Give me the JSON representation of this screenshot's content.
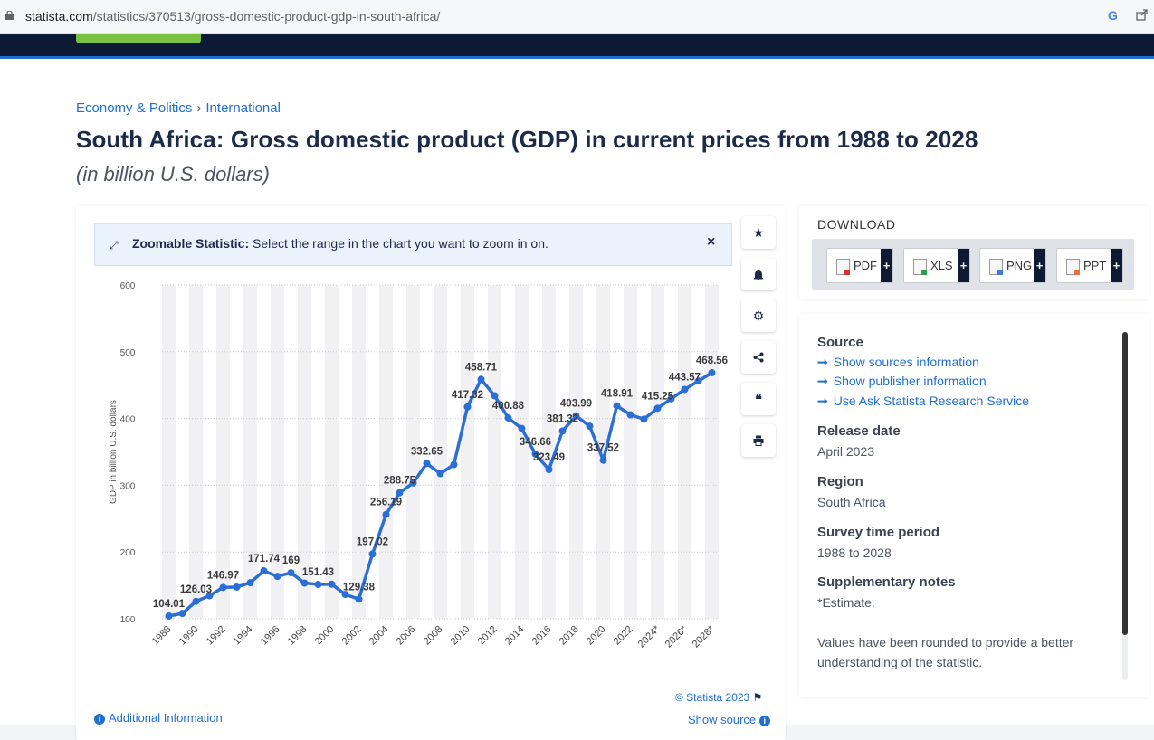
{
  "browser": {
    "url_host": "statista.com",
    "url_path": "/statistics/370513/gross-domestic-product-gdp-in-south-africa/",
    "google_icon": "G"
  },
  "breadcrumb": {
    "items": [
      "Economy & Politics",
      "International"
    ],
    "separator": "›"
  },
  "page": {
    "title": "South Africa: Gross domestic product (GDP) in current prices from 1988 to 2028",
    "subtitle": "(in billion U.S. dollars)"
  },
  "zoom_banner": {
    "label": "Zoomable Statistic:",
    "text": "Select the range in the chart you want to zoom in on.",
    "close": "×"
  },
  "tools": [
    "star-icon",
    "bell-icon",
    "gear-icon",
    "share-icon",
    "quote-icon",
    "print-icon"
  ],
  "chart_data": {
    "type": "line",
    "title": "",
    "xlabel": "",
    "ylabel": "GDP in billion U.S. dollars",
    "ylim": [
      100,
      600
    ],
    "yticks": [
      100,
      200,
      300,
      400,
      500,
      600
    ],
    "x_tick_labels": [
      "1988",
      "1990",
      "1992",
      "1994",
      "1996",
      "1998",
      "2000",
      "2002",
      "2004",
      "2006",
      "2008",
      "2010",
      "2012",
      "2014",
      "2016",
      "2018",
      "2020",
      "2022",
      "2024*",
      "2026*",
      "2028*"
    ],
    "grid": true,
    "color": "#2b6fd6",
    "x": [
      1988,
      1989,
      1990,
      1991,
      1992,
      1993,
      1994,
      1995,
      1996,
      1997,
      1998,
      1999,
      2000,
      2001,
      2002,
      2003,
      2004,
      2005,
      2006,
      2007,
      2008,
      2009,
      2010,
      2011,
      2012,
      2013,
      2014,
      2015,
      2016,
      2017,
      2018,
      2019,
      2020,
      2021,
      2022,
      2023,
      2024,
      2025,
      2026,
      2027,
      2028
    ],
    "values": [
      104.01,
      108.0,
      126.03,
      134.5,
      146.97,
      147.5,
      154.0,
      171.74,
      163.5,
      169,
      153.5,
      151.43,
      151.8,
      136.5,
      129.38,
      197.02,
      256.19,
      288.75,
      303.5,
      332.65,
      317.5,
      331.0,
      417.32,
      458.71,
      434.0,
      400.88,
      385.0,
      346.66,
      323.49,
      381.32,
      403.99,
      388.5,
      337.52,
      418.91,
      405.5,
      399.0,
      415.25,
      429.5,
      443.57,
      456.0,
      468.56
    ],
    "data_labels": [
      {
        "x": 1988,
        "text": "104.01"
      },
      {
        "x": 1990,
        "text": "126.03"
      },
      {
        "x": 1992,
        "text": "146.97"
      },
      {
        "x": 1995,
        "text": "171.74"
      },
      {
        "x": 1997,
        "text": "169"
      },
      {
        "x": 1999,
        "text": "151.43"
      },
      {
        "x": 2002,
        "text": "129.38"
      },
      {
        "x": 2003,
        "text": "197.02"
      },
      {
        "x": 2004,
        "text": "256.19"
      },
      {
        "x": 2005,
        "text": "288.75"
      },
      {
        "x": 2007,
        "text": "332.65"
      },
      {
        "x": 2010,
        "text": "417.32"
      },
      {
        "x": 2011,
        "text": "458.71"
      },
      {
        "x": 2013,
        "text": "400.88"
      },
      {
        "x": 2015,
        "text": "346.66"
      },
      {
        "x": 2016,
        "text": "323.49"
      },
      {
        "x": 2017,
        "text": "381.32"
      },
      {
        "x": 2018,
        "text": "403.99"
      },
      {
        "x": 2020,
        "text": "337.52"
      },
      {
        "x": 2021,
        "text": "418.91"
      },
      {
        "x": 2024,
        "text": "415.25"
      },
      {
        "x": 2026,
        "text": "443.57"
      },
      {
        "x": 2028,
        "text": "468.56"
      }
    ]
  },
  "chart_footer": {
    "copyright": "© Statista 2023",
    "additional_info": "Additional Information",
    "show_source": "Show source"
  },
  "download": {
    "title": "DOWNLOAD",
    "buttons": [
      {
        "label": "PDF",
        "plus": "+",
        "color": "#d9342b"
      },
      {
        "label": "XLS",
        "plus": "+",
        "color": "#2e9e48"
      },
      {
        "label": "PNG",
        "plus": "+",
        "color": "#3b7dd8"
      },
      {
        "label": "PPT",
        "plus": "+",
        "color": "#e8743b"
      }
    ]
  },
  "info": {
    "source_heading": "Source",
    "links": [
      "Show sources information",
      "Show publisher information",
      "Use Ask Statista Research Service"
    ],
    "link_arrow": "➞",
    "release_heading": "Release date",
    "release_value": "April 2023",
    "region_heading": "Region",
    "region_value": "South Africa",
    "survey_heading": "Survey time period",
    "survey_value": "1988 to 2028",
    "supp_heading": "Supplementary notes",
    "supp_value": "*Estimate.",
    "rounding_note": "Values have been rounded to provide a better understanding of the statistic."
  }
}
